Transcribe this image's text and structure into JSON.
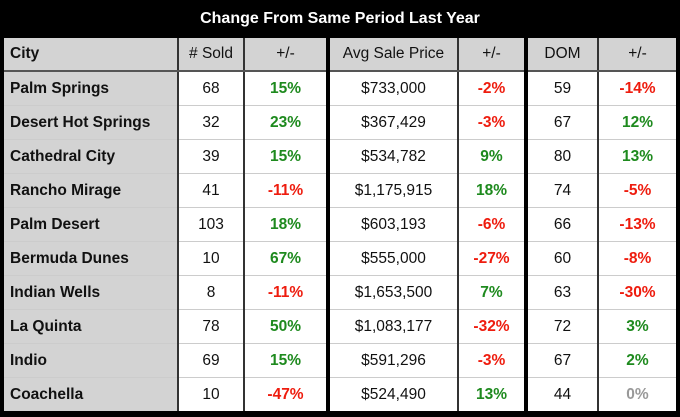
{
  "title": "Change From Same Period Last Year",
  "headers": [
    "City",
    "# Sold",
    "+/-",
    "Avg Sale Price",
    "+/-",
    "DOM",
    "+/-"
  ],
  "colors": {
    "positive": "#1e8a1e",
    "negative": "#ee1c0e",
    "zero": "#999999"
  },
  "rows": [
    [
      "Palm Springs",
      "68",
      "15%",
      "$733,000",
      "-2%",
      "59",
      "-14%"
    ],
    [
      "Desert Hot Springs",
      "32",
      "23%",
      "$367,429",
      "-3%",
      "67",
      "12%"
    ],
    [
      "Cathedral City",
      "39",
      "15%",
      "$534,782",
      "9%",
      "80",
      "13%"
    ],
    [
      "Rancho Mirage",
      "41",
      "-11%",
      "$1,175,915",
      "18%",
      "74",
      "-5%"
    ],
    [
      "Palm Desert",
      "103",
      "18%",
      "$603,193",
      "-6%",
      "66",
      "-13%"
    ],
    [
      "Bermuda Dunes",
      "10",
      "67%",
      "$555,000",
      "-27%",
      "60",
      "-8%"
    ],
    [
      "Indian Wells",
      "8",
      "-11%",
      "$1,653,500",
      "7%",
      "63",
      "-30%"
    ],
    [
      "La Quinta",
      "78",
      "50%",
      "$1,083,177",
      "-32%",
      "72",
      "3%"
    ],
    [
      "Indio",
      "69",
      "15%",
      "$591,296",
      "-3%",
      "67",
      "2%"
    ],
    [
      "Coachella",
      "10",
      "-47%",
      "$524,490",
      "13%",
      "44",
      "0%"
    ]
  ]
}
